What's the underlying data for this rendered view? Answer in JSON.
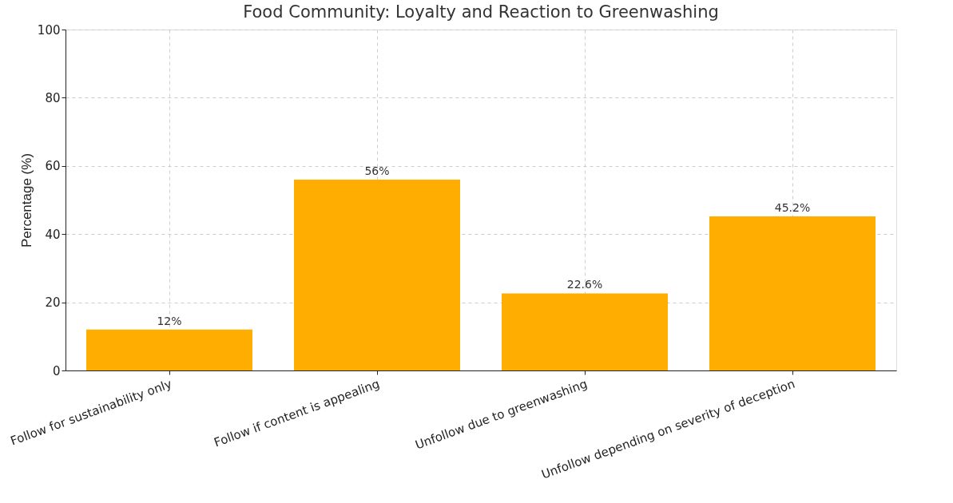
{
  "chart_data": {
    "type": "bar",
    "title": "Food Community: Loyalty and Reaction to Greenwashing",
    "ylabel": "Percentage (%)",
    "categories": [
      "Follow for sustainability only",
      "Follow if content is appealing",
      "Unfollow due to greenwashing",
      "Unfollow depending on severity of deception"
    ],
    "values": [
      12,
      56,
      22.6,
      45.2
    ],
    "value_labels": [
      "12%",
      "56%",
      "22.6%",
      "45.2%"
    ],
    "color": "#ffae00",
    "ylim": [
      0,
      100
    ],
    "yticks": [
      0,
      20,
      40,
      60,
      80,
      100
    ],
    "grid": true
  }
}
